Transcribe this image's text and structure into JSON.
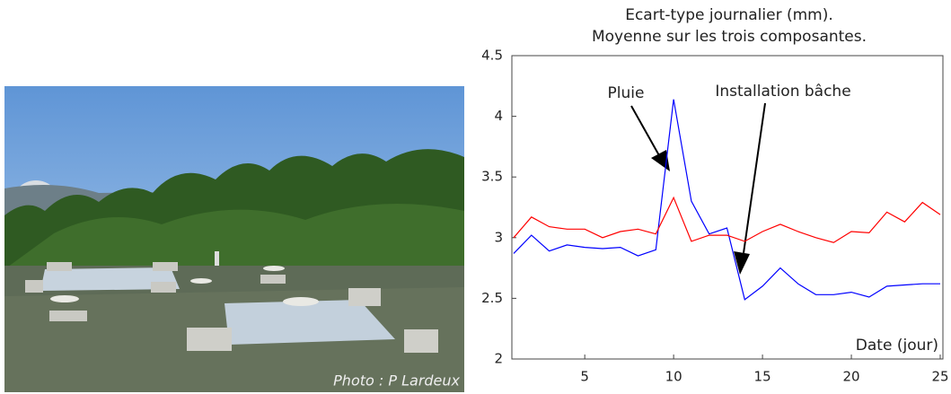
{
  "photo": {
    "caption": "Photo : P Lardeux"
  },
  "chart_data": {
    "type": "line",
    "title": "Ecart-type journalier (mm).",
    "subtitle": "Moyenne sur les trois composantes.",
    "x_label": "Date (jour)",
    "annotations": [
      "Pluie",
      "Installation bâche"
    ],
    "x": [
      1,
      2,
      3,
      4,
      5,
      6,
      7,
      8,
      9,
      10,
      11,
      12,
      13,
      14,
      15,
      16,
      17,
      18,
      19,
      20,
      21,
      22,
      23,
      24,
      25
    ],
    "series": [
      {
        "color": "#0000ff",
        "values": [
          2.87,
          3.02,
          2.89,
          2.94,
          2.92,
          2.91,
          2.92,
          2.85,
          2.9,
          4.14,
          3.3,
          3.03,
          3.08,
          2.49,
          2.6,
          2.75,
          2.62,
          2.53,
          2.53,
          2.55,
          2.51,
          2.6,
          2.61,
          2.62,
          2.62
        ]
      },
      {
        "color": "#ff0000",
        "values": [
          3.0,
          3.17,
          3.09,
          3.07,
          3.07,
          3.0,
          3.05,
          3.07,
          3.03,
          3.33,
          2.97,
          3.02,
          3.02,
          2.97,
          3.05,
          3.11,
          3.05,
          3.0,
          2.96,
          3.05,
          3.04,
          3.21,
          3.13,
          3.29,
          3.19
        ]
      }
    ],
    "xlim": [
      1,
      25
    ],
    "xticks": [
      5,
      10,
      15,
      20,
      25
    ],
    "ylim": [
      2,
      4.5
    ],
    "yticks": [
      2,
      2.5,
      3,
      3.5,
      4,
      4.5
    ],
    "grid": false
  }
}
